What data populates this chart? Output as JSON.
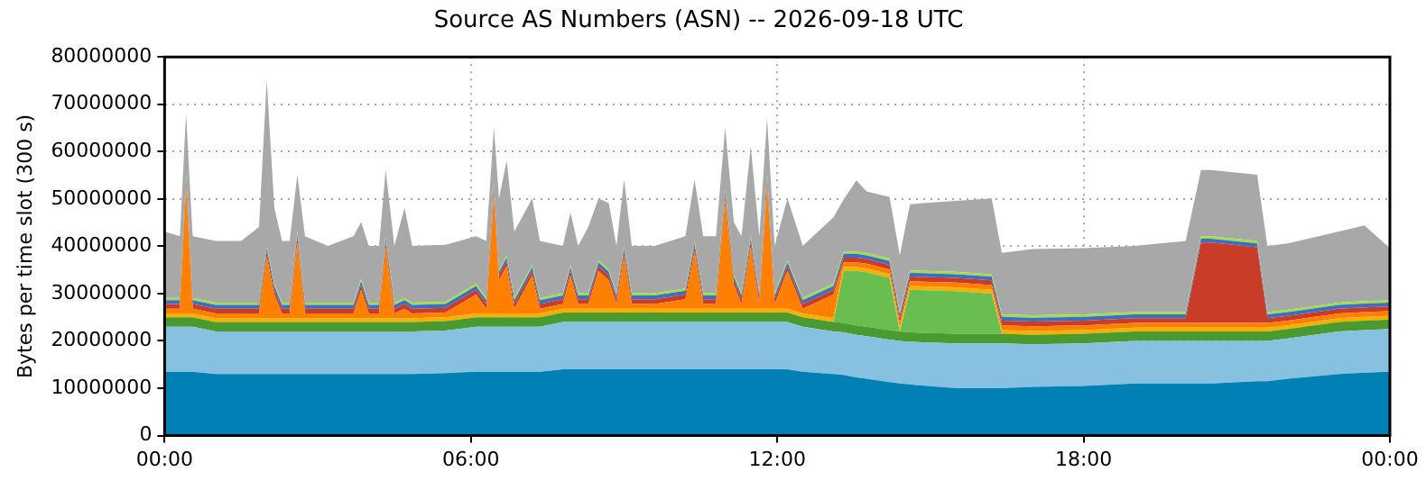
{
  "chart_data": {
    "type": "area",
    "stacked": true,
    "title": "Source AS Numbers (ASN) -- 2026-09-18 UTC",
    "ylabel": "Bytes per time slot (300 s)",
    "x": [
      0,
      0.3,
      0.42,
      0.55,
      1,
      1.5,
      1.85,
      2.0,
      2.15,
      2.3,
      2.45,
      2.6,
      2.75,
      3.2,
      3.7,
      3.85,
      4.0,
      4.2,
      4.33,
      4.5,
      4.7,
      4.85,
      5.5,
      6.1,
      6.3,
      6.45,
      6.55,
      6.7,
      6.85,
      7.2,
      7.35,
      7.8,
      7.95,
      8.1,
      8.3,
      8.5,
      8.7,
      8.85,
      9.0,
      9.15,
      9.6,
      10.2,
      10.38,
      10.55,
      10.8,
      10.98,
      11.15,
      11.3,
      11.48,
      11.65,
      11.8,
      11.95,
      12.2,
      12.5,
      13.1,
      13.3,
      13.55,
      13.75,
      14.2,
      14.4,
      14.6,
      15.5,
      16.2,
      16.4,
      17,
      18,
      19,
      20,
      20.3,
      20.5,
      21.4,
      21.6,
      22,
      23,
      23.5,
      24
    ],
    "series": [
      {
        "color": "#0080b4",
        "values": [
          13500000.0,
          13500000.0,
          13500000.0,
          13500000.0,
          13000000.0,
          13000000.0,
          13000000.0,
          13000000.0,
          13000000.0,
          13000000.0,
          13000000.0,
          13000000.0,
          13000000.0,
          13000000.0,
          13000000.0,
          13000000.0,
          13000000.0,
          13000000.0,
          13000000.0,
          13000000.0,
          13000000.0,
          13000000.0,
          13200000.0,
          13500000.0,
          13500000.0,
          13500000.0,
          13500000.0,
          13500000.0,
          13500000.0,
          13500000.0,
          13500000.0,
          14000000.0,
          14000000.0,
          14000000.0,
          14000000.0,
          14000000.0,
          14000000.0,
          14000000.0,
          14000000.0,
          14000000.0,
          14000000.0,
          14000000.0,
          14000000.0,
          14000000.0,
          14000000.0,
          14000000.0,
          14000000.0,
          14000000.0,
          14000000.0,
          14000000.0,
          14000000.0,
          14000000.0,
          14000000.0,
          13500000.0,
          13000000.0,
          12800000.0,
          12300000.0,
          12000000.0,
          11300000.0,
          11000000.0,
          10800000.0,
          10000000.0,
          10000000.0,
          10000000.0,
          10300000.0,
          10500000.0,
          11000000.0,
          11000000.0,
          11000000.0,
          11000000.0,
          11500000.0,
          11500000.0,
          12000000.0,
          13000000.0,
          13300000.0,
          13500000.0
        ]
      },
      {
        "color": "#88c0e0",
        "values": [
          9500000.0,
          9500000.0,
          9500000.0,
          9500000.0,
          9000000.0,
          9000000.0,
          9000000.0,
          9000000.0,
          9000000.0,
          9000000.0,
          9000000.0,
          9000000.0,
          9000000.0,
          9000000.0,
          9000000.0,
          9000000.0,
          9000000.0,
          9000000.0,
          9000000.0,
          9000000.0,
          9000000.0,
          9000000.0,
          9000000.0,
          9500000.0,
          9500000.0,
          9500000.0,
          9500000.0,
          9500000.0,
          9500000.0,
          9500000.0,
          9500000.0,
          10000000.0,
          10000000.0,
          10000000.0,
          10000000.0,
          10000000.0,
          10000000.0,
          10000000.0,
          10000000.0,
          10000000.0,
          10000000.0,
          10000000.0,
          10000000.0,
          10000000.0,
          10000000.0,
          10000000.0,
          10000000.0,
          10000000.0,
          10000000.0,
          10000000.0,
          10000000.0,
          10000000.0,
          10000000.0,
          9500000.0,
          9000000.0,
          9000000.0,
          9000000.0,
          9000000.0,
          9000000.0,
          9000000.0,
          9000000.0,
          9500000.0,
          9500000.0,
          9500000.0,
          9000000.0,
          9000000.0,
          9000000.0,
          9000000.0,
          9000000.0,
          9000000.0,
          8500000.0,
          8500000.0,
          8500000.0,
          9000000.0,
          9000000.0,
          9000000.0
        ]
      },
      {
        "color": "#4a9a30",
        "values": [
          2000000.0,
          2000000.0,
          2000000.0,
          2000000.0,
          2000000.0,
          2000000.0,
          2000000.0,
          2000000.0,
          2000000.0,
          2000000.0,
          2000000.0,
          2000000.0,
          2000000.0,
          2000000.0,
          2000000.0,
          2000000.0,
          2000000.0,
          2000000.0,
          2000000.0,
          2000000.0,
          2000000.0,
          2000000.0,
          2000000.0,
          2000000.0,
          2000000.0,
          2000000.0,
          2000000.0,
          2000000.0,
          2000000.0,
          2000000.0,
          2000000.0,
          2000000.0,
          2000000.0,
          2000000.0,
          2000000.0,
          2000000.0,
          2000000.0,
          2000000.0,
          2000000.0,
          2000000.0,
          2000000.0,
          2000000.0,
          2000000.0,
          2000000.0,
          2000000.0,
          2000000.0,
          2000000.0,
          2000000.0,
          2000000.0,
          2000000.0,
          2000000.0,
          2000000.0,
          2000000.0,
          2000000.0,
          2000000.0,
          2000000.0,
          2000000.0,
          2000000.0,
          2000000.0,
          2000000.0,
          2000000.0,
          2000000.0,
          2000000.0,
          2000000.0,
          2000000.0,
          2000000.0,
          2000000.0,
          2000000.0,
          2000000.0,
          2000000.0,
          2000000.0,
          2000000.0,
          2000000.0,
          2000000.0,
          2000000.0,
          2000000.0
        ]
      },
      {
        "color": "#6abe50",
        "values": [
          0,
          0,
          0,
          0,
          0,
          0,
          0,
          0,
          0,
          0,
          0,
          0,
          0,
          0,
          0,
          0,
          0,
          0,
          0,
          0,
          0,
          0,
          0,
          0,
          0,
          0,
          0,
          0,
          0,
          0,
          0,
          0,
          0,
          0,
          0,
          0,
          0,
          0,
          0,
          0,
          0,
          0,
          0,
          0,
          0,
          0,
          0,
          0,
          0,
          0,
          0,
          0,
          0,
          0,
          0,
          11000000.0,
          11500000.0,
          11500000.0,
          11000000.0,
          0,
          9000000.0,
          9000000.0,
          8500000.0,
          0,
          0,
          0,
          0,
          0,
          0,
          0,
          0,
          0,
          0,
          0,
          0,
          0
        ]
      },
      {
        "color": "#f5b000",
        "values": [
          800000.0,
          800000.0,
          800000.0,
          800000.0,
          800000.0,
          800000.0,
          800000.0,
          800000.0,
          800000.0,
          800000.0,
          800000.0,
          800000.0,
          800000.0,
          800000.0,
          800000.0,
          800000.0,
          800000.0,
          800000.0,
          800000.0,
          800000.0,
          800000.0,
          800000.0,
          800000.0,
          800000.0,
          800000.0,
          800000.0,
          800000.0,
          800000.0,
          800000.0,
          800000.0,
          800000.0,
          800000.0,
          800000.0,
          800000.0,
          800000.0,
          800000.0,
          800000.0,
          800000.0,
          800000.0,
          800000.0,
          800000.0,
          800000.0,
          800000.0,
          800000.0,
          800000.0,
          800000.0,
          800000.0,
          800000.0,
          800000.0,
          800000.0,
          800000.0,
          800000.0,
          800000.0,
          800000.0,
          800000.0,
          800000.0,
          800000.0,
          800000.0,
          800000.0,
          800000.0,
          800000.0,
          800000.0,
          800000.0,
          800000.0,
          800000.0,
          800000.0,
          800000.0,
          800000.0,
          800000.0,
          800000.0,
          800000.0,
          800000.0,
          800000.0,
          800000.0,
          800000.0,
          800000.0
        ]
      },
      {
        "color": "#ff7f00",
        "values": [
          1000000.0,
          1000000.0,
          27000000.0,
          1000000.0,
          1000000.0,
          1000000.0,
          1000000.0,
          13000000.0,
          5000000.0,
          1000000.0,
          1000000.0,
          16000000.0,
          1000000.0,
          1000000.0,
          1000000.0,
          6000000.0,
          1000000.0,
          1000000.0,
          15000000.0,
          1000000.0,
          2000000.0,
          1000000.0,
          1000000.0,
          4000000.0,
          1000000.0,
          25000000.0,
          7000000.0,
          10000000.0,
          1000000.0,
          8000000.0,
          1000000.0,
          1000000.0,
          7000000.0,
          1000000.0,
          1000000.0,
          8000000.0,
          6000000.0,
          1000000.0,
          11000000.0,
          1000000.0,
          1000000.0,
          2000000.0,
          12000000.0,
          1000000.0,
          1000000.0,
          23000000.0,
          5000000.0,
          1000000.0,
          13000000.0,
          1000000.0,
          26000000.0,
          1000000.0,
          8000000.0,
          1000000.0,
          5000000.0,
          1000000.0,
          1000000.0,
          1000000.0,
          1000000.0,
          1000000.0,
          1000000.0,
          1000000.0,
          1000000.0,
          1000000.0,
          1000000.0,
          1000000.0,
          1000000.0,
          1000000.0,
          1000000.0,
          1000000.0,
          1000000.0,
          1000000.0,
          1000000.0,
          1000000.0,
          1000000.0,
          1000000.0
        ]
      },
      {
        "color": "#c83c28",
        "values": [
          1000000.0,
          1000000.0,
          1000000.0,
          1000000.0,
          1000000.0,
          1000000.0,
          1000000.0,
          1000000.0,
          1000000.0,
          1000000.0,
          1000000.0,
          1000000.0,
          1000000.0,
          1000000.0,
          1000000.0,
          1000000.0,
          1000000.0,
          1000000.0,
          1000000.0,
          1000000.0,
          1000000.0,
          1000000.0,
          1000000.0,
          1000000.0,
          1000000.0,
          1000000.0,
          1000000.0,
          1000000.0,
          1000000.0,
          1000000.0,
          1000000.0,
          1000000.0,
          1000000.0,
          1000000.0,
          1000000.0,
          1000000.0,
          1000000.0,
          1000000.0,
          1000000.0,
          1000000.0,
          1000000.0,
          1000000.0,
          1000000.0,
          1000000.0,
          1000000.0,
          1000000.0,
          1000000.0,
          1000000.0,
          1000000.0,
          1000000.0,
          1000000.0,
          1000000.0,
          1000000.0,
          1000000.0,
          1000000.0,
          1000000.0,
          1000000.0,
          1000000.0,
          1000000.0,
          1000000.0,
          1000000.0,
          1000000.0,
          1000000.0,
          1000000.0,
          1000000.0,
          1000000.0,
          1000000.0,
          1000000.0,
          17000000.0,
          17000000.0,
          16000000.0,
          1000000.0,
          1000000.0,
          1000000.0,
          1000000.0,
          1000000.0
        ]
      },
      {
        "color": "#3c6ec8",
        "values": [
          800000.0,
          800000.0,
          800000.0,
          800000.0,
          800000.0,
          800000.0,
          800000.0,
          800000.0,
          800000.0,
          800000.0,
          800000.0,
          800000.0,
          800000.0,
          800000.0,
          800000.0,
          800000.0,
          800000.0,
          800000.0,
          800000.0,
          800000.0,
          800000.0,
          800000.0,
          800000.0,
          800000.0,
          800000.0,
          800000.0,
          800000.0,
          800000.0,
          800000.0,
          800000.0,
          800000.0,
          800000.0,
          800000.0,
          800000.0,
          800000.0,
          800000.0,
          800000.0,
          800000.0,
          800000.0,
          800000.0,
          800000.0,
          800000.0,
          800000.0,
          800000.0,
          800000.0,
          800000.0,
          800000.0,
          800000.0,
          800000.0,
          800000.0,
          800000.0,
          800000.0,
          800000.0,
          800000.0,
          800000.0,
          800000.0,
          800000.0,
          800000.0,
          800000.0,
          800000.0,
          800000.0,
          800000.0,
          800000.0,
          800000.0,
          800000.0,
          800000.0,
          800000.0,
          800000.0,
          800000.0,
          800000.0,
          800000.0,
          800000.0,
          800000.0,
          800000.0,
          800000.0,
          800000.0
        ]
      },
      {
        "color": "#9ee040",
        "values": [
          500000.0,
          500000.0,
          500000.0,
          500000.0,
          500000.0,
          500000.0,
          500000.0,
          500000.0,
          500000.0,
          500000.0,
          500000.0,
          500000.0,
          500000.0,
          500000.0,
          500000.0,
          500000.0,
          500000.0,
          500000.0,
          500000.0,
          500000.0,
          500000.0,
          500000.0,
          500000.0,
          500000.0,
          500000.0,
          500000.0,
          500000.0,
          500000.0,
          500000.0,
          500000.0,
          500000.0,
          500000.0,
          500000.0,
          500000.0,
          500000.0,
          500000.0,
          500000.0,
          500000.0,
          500000.0,
          500000.0,
          500000.0,
          500000.0,
          500000.0,
          500000.0,
          500000.0,
          500000.0,
          500000.0,
          500000.0,
          500000.0,
          500000.0,
          500000.0,
          500000.0,
          500000.0,
          500000.0,
          500000.0,
          500000.0,
          500000.0,
          500000.0,
          500000.0,
          500000.0,
          500000.0,
          500000.0,
          500000.0,
          500000.0,
          500000.0,
          500000.0,
          500000.0,
          500000.0,
          500000.0,
          500000.0,
          500000.0,
          500000.0,
          500000.0,
          500000.0,
          500000.0,
          500000.0
        ]
      },
      {
        "color": "#a8a8a8",
        "values": [
          14000000.0,
          13000000.0,
          13000000.0,
          13000000.0,
          13000000.0,
          13000000.0,
          16000000.0,
          35000000.0,
          16000000.0,
          13000000.0,
          13000000.0,
          12000000.0,
          14000000.0,
          12000000.0,
          14000000.0,
          12000000.0,
          12000000.0,
          12000000.0,
          14000000.0,
          12000000.0,
          19000000.0,
          12000000.0,
          12000000.0,
          10000000.0,
          12000000.0,
          12000000.0,
          15000000.0,
          20000000.0,
          14000000.0,
          14000000.0,
          12000000.0,
          10000000.0,
          11000000.0,
          10000000.0,
          14000000.0,
          13000000.0,
          14000000.0,
          10000000.0,
          14000000.0,
          10000000.0,
          10000000.0,
          11000000.0,
          13000000.0,
          12000000.0,
          12000000.0,
          13000000.0,
          11000000.0,
          12000000.0,
          19000000.0,
          12000000.0,
          12000000.0,
          10000000.0,
          13000000.0,
          11000000.0,
          14000000.0,
          11000000.0,
          15000000.0,
          13000000.0,
          13000000.0,
          12000000.0,
          14000000.0,
          15000000.0,
          16000000.0,
          13000000.0,
          14000000.0,
          14000000.0,
          14000000.0,
          15000000.0,
          14000000.0,
          14000000.0,
          14000000.0,
          14000000.0,
          14000000.0,
          15000000.0,
          16000000.0,
          11000000.0
        ]
      }
    ],
    "xlim": [
      0,
      24
    ],
    "xticks": [
      {
        "value": 0,
        "label": "00:00"
      },
      {
        "value": 6,
        "label": "06:00"
      },
      {
        "value": 12,
        "label": "12:00"
      },
      {
        "value": 18,
        "label": "18:00"
      },
      {
        "value": 24,
        "label": "00:00"
      }
    ],
    "ylim": [
      0,
      80000000
    ],
    "yticks": [
      0,
      10000000,
      20000000,
      30000000,
      40000000,
      50000000,
      60000000,
      70000000,
      80000000
    ],
    "grid": true
  }
}
